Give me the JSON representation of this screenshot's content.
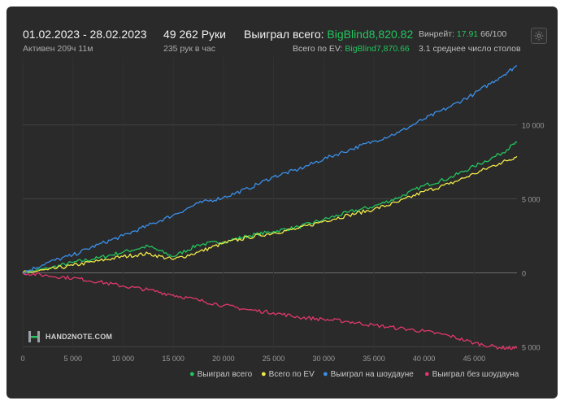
{
  "header": {
    "date_range": "01.02.2023 - 28.02.2023",
    "active_time": "Активен 209ч 11м",
    "hands": "49 262 Руки",
    "hands_per_hour": "235 рук в час",
    "won_total_label": "Выиграл всего:",
    "won_total_value": "BigBlind8,820.82",
    "ev_total_label": "Всего по EV:",
    "ev_total_value": "BigBlind7,870.66",
    "winrate_label": "Винрейт:",
    "winrate_value": "17.91",
    "winrate_hands": "66/100",
    "avg_tables": "3.1 среднее число столов"
  },
  "logo": {
    "text": "HAND2NOTE.COM"
  },
  "colors": {
    "won_total": "#22c55e",
    "ev": "#f1e94a",
    "showdown": "#3b8fe8",
    "non_showdown": "#e0386a",
    "background": "#2a2a2a"
  },
  "chart_data": {
    "type": "line",
    "x_ticks": [
      "0",
      "5 000",
      "10 000",
      "15 000",
      "20 000",
      "25 000",
      "30 000",
      "35 000",
      "40 000",
      "45 000"
    ],
    "y_ticks": [
      "10 000",
      "5 000",
      "0",
      "-5 000"
    ],
    "xlim": [
      0,
      49262
    ],
    "ylim": [
      -5200,
      14600
    ],
    "series": [
      {
        "name": "Выиграл всего",
        "color": "#22c55e",
        "x": [
          0,
          2500,
          5000,
          7500,
          10000,
          12500,
          15000,
          17500,
          20000,
          22500,
          25000,
          27500,
          30000,
          32500,
          35000,
          37500,
          40000,
          42500,
          45000,
          47500,
          49262
        ],
        "y": [
          0,
          300,
          700,
          1000,
          1400,
          1800,
          1100,
          1900,
          2100,
          2500,
          2800,
          3100,
          3600,
          4100,
          4500,
          5100,
          5900,
          6400,
          7200,
          8000,
          8820
        ]
      },
      {
        "name": "Всего по EV",
        "color": "#f1e94a",
        "x": [
          0,
          2500,
          5000,
          7500,
          10000,
          12500,
          15000,
          17500,
          20000,
          22500,
          25000,
          27500,
          30000,
          32500,
          35000,
          37500,
          40000,
          42500,
          45000,
          47500,
          49262
        ],
        "y": [
          0,
          200,
          500,
          800,
          1100,
          1300,
          900,
          1400,
          2000,
          2400,
          2700,
          3000,
          3500,
          3900,
          4300,
          4800,
          5500,
          6000,
          6700,
          7400,
          7870
        ]
      },
      {
        "name": "Выиграл на шоудауне",
        "color": "#3b8fe8",
        "x": [
          0,
          2500,
          5000,
          7500,
          10000,
          12500,
          15000,
          17500,
          20000,
          22500,
          25000,
          27500,
          30000,
          32500,
          35000,
          37500,
          40000,
          42500,
          45000,
          47500,
          49262
        ],
        "y": [
          0,
          700,
          1200,
          1900,
          2500,
          3200,
          3900,
          4700,
          5100,
          5700,
          6500,
          7000,
          7700,
          8300,
          8900,
          9500,
          10400,
          11200,
          12100,
          13200,
          14000
        ]
      },
      {
        "name": "Выиграл без шоудауна",
        "color": "#e0386a",
        "x": [
          0,
          2500,
          5000,
          7500,
          10000,
          12500,
          15000,
          17500,
          20000,
          22500,
          25000,
          27500,
          30000,
          32500,
          35000,
          37500,
          40000,
          42500,
          45000,
          47500,
          49262
        ],
        "y": [
          0,
          -200,
          -350,
          -600,
          -900,
          -1150,
          -1500,
          -1850,
          -2200,
          -2500,
          -2700,
          -3000,
          -3150,
          -3300,
          -3550,
          -3750,
          -3950,
          -4250,
          -4750,
          -5050,
          -5100
        ]
      }
    ]
  }
}
